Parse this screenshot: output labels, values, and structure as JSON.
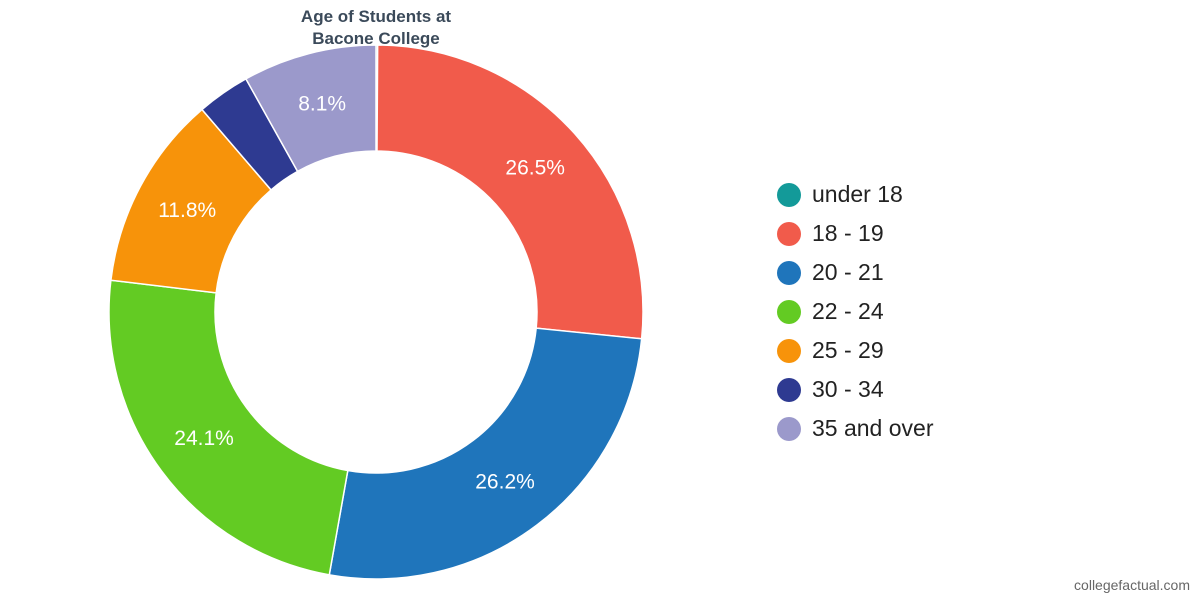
{
  "chart_data": {
    "type": "pie",
    "title_lines": [
      "Age of Students at",
      "Bacone College"
    ],
    "categories": [
      "under 18",
      "18 - 19",
      "20 - 21",
      "22 - 24",
      "25 - 29",
      "30 - 34",
      "35 and over"
    ],
    "values": [
      0.1,
      26.5,
      26.2,
      24.1,
      11.8,
      3.2,
      8.1
    ],
    "data_labels": [
      "",
      "26.5%",
      "26.2%",
      "24.1%",
      "11.8%",
      "",
      "8.1%"
    ],
    "colors": [
      "#139a99",
      "#f15b4b",
      "#1f75bb",
      "#63cb23",
      "#f7930a",
      "#2e3a91",
      "#9b99cb"
    ],
    "donut": true,
    "legend_position": "right"
  },
  "watermark": "collegefactual.com"
}
